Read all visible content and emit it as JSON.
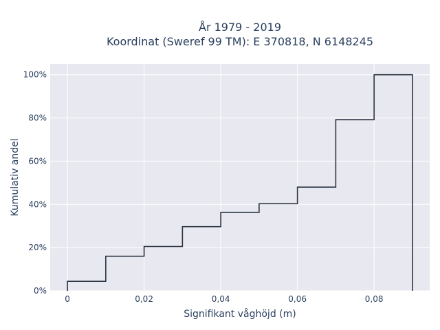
{
  "chart_data": {
    "type": "line",
    "line_shape": "step",
    "title_line1": "År 1979 - 2019",
    "title_line2": "Koordinat (Sweref 99 TM): E 370818, N 6148245",
    "xlabel": "Signifikant våghöjd (m)",
    "ylabel": "Kumulativ andel",
    "xlim": [
      -0.0045,
      0.0945
    ],
    "ylim": [
      0,
      1.05
    ],
    "x_ticks": [
      0,
      0.02,
      0.04,
      0.06,
      0.08
    ],
    "x_tick_labels": [
      "0",
      "0,02",
      "0,04",
      "0,06",
      "0,08"
    ],
    "y_ticks": [
      0,
      0.2,
      0.4,
      0.6,
      0.8,
      1.0
    ],
    "y_tick_labels": [
      "0%",
      "20%",
      "40%",
      "60%",
      "80%",
      "100%"
    ],
    "bins": [
      {
        "x0": 0.0,
        "x1": 0.01,
        "y": 0.044
      },
      {
        "x0": 0.01,
        "x1": 0.02,
        "y": 0.16
      },
      {
        "x0": 0.02,
        "x1": 0.03,
        "y": 0.205
      },
      {
        "x0": 0.03,
        "x1": 0.04,
        "y": 0.297
      },
      {
        "x0": 0.04,
        "x1": 0.05,
        "y": 0.363
      },
      {
        "x0": 0.05,
        "x1": 0.06,
        "y": 0.403
      },
      {
        "x0": 0.06,
        "x1": 0.07,
        "y": 0.48
      },
      {
        "x0": 0.07,
        "x1": 0.08,
        "y": 0.792
      },
      {
        "x0": 0.08,
        "x1": 0.09,
        "y": 1.0
      }
    ],
    "grid": true,
    "line_color": "#2a3542",
    "plot_bg": "#e8e8f0"
  }
}
